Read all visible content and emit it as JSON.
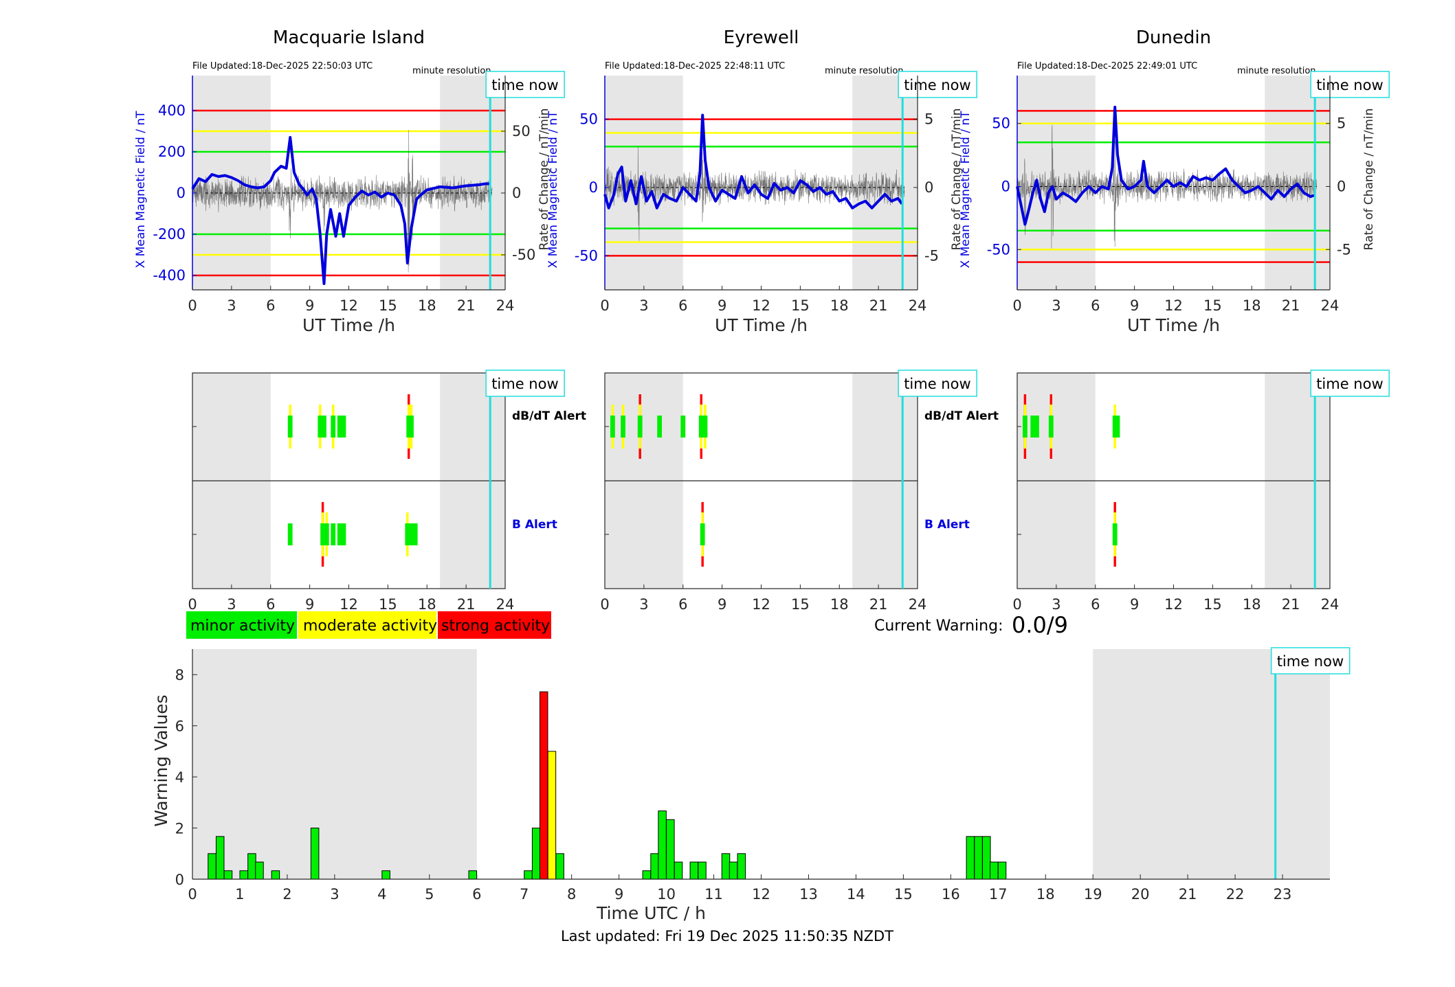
{
  "colors": {
    "minor": "#00ee00",
    "moderate": "#ffff00",
    "strong": "#ff0000",
    "field": "#0000dd",
    "timenow": "#22dddd",
    "night_shade": "#e6e6e6"
  },
  "stations": [
    {
      "name": "Macquarie Island",
      "file_updated": "File Updated:18-Dec-2025 22:50:03 UTC",
      "resolution": "minute resolution",
      "left_ylabel": "X Mean Magnetic Field / nT",
      "right_ylabel": "Rate of Change / nT/min",
      "left_ylim": [
        -470,
        570
      ],
      "left_yticks": [
        -400,
        -200,
        0,
        200,
        400
      ],
      "right_ylim": [
        -78.33,
        95
      ],
      "right_yticks": [
        -50,
        0,
        50
      ],
      "thresholds": [
        {
          "value": 400,
          "level": "strong"
        },
        {
          "value": 300,
          "level": "moderate"
        },
        {
          "value": 200,
          "level": "minor"
        },
        {
          "value": -200,
          "level": "minor"
        },
        {
          "value": -300,
          "level": "moderate"
        },
        {
          "value": -400,
          "level": "strong"
        }
      ],
      "shade": [
        [
          0,
          6
        ],
        [
          19,
          24
        ]
      ],
      "field_trace": [
        [
          0,
          20
        ],
        [
          0.5,
          70
        ],
        [
          1,
          55
        ],
        [
          1.5,
          90
        ],
        [
          2,
          80
        ],
        [
          2.5,
          85
        ],
        [
          3,
          75
        ],
        [
          3.5,
          60
        ],
        [
          4,
          40
        ],
        [
          4.5,
          30
        ],
        [
          5,
          25
        ],
        [
          5.5,
          30
        ],
        [
          6,
          60
        ],
        [
          6.3,
          100
        ],
        [
          6.8,
          130
        ],
        [
          7.2,
          120
        ],
        [
          7.5,
          270
        ],
        [
          7.8,
          100
        ],
        [
          8.2,
          40
        ],
        [
          8.5,
          20
        ],
        [
          8.8,
          -10
        ],
        [
          9.2,
          20
        ],
        [
          9.5,
          -30
        ],
        [
          9.8,
          -200
        ],
        [
          10.1,
          -440
        ],
        [
          10.3,
          -200
        ],
        [
          10.6,
          -80
        ],
        [
          11,
          -210
        ],
        [
          11.3,
          -100
        ],
        [
          11.6,
          -210
        ],
        [
          12,
          -60
        ],
        [
          12.5,
          -20
        ],
        [
          13,
          10
        ],
        [
          13.5,
          -10
        ],
        [
          14,
          5
        ],
        [
          14.5,
          -20
        ],
        [
          15,
          0
        ],
        [
          15.5,
          -10
        ],
        [
          16,
          -60
        ],
        [
          16.3,
          -150
        ],
        [
          16.5,
          -340
        ],
        [
          16.8,
          -170
        ],
        [
          17.2,
          -30
        ],
        [
          17.5,
          -10
        ],
        [
          18,
          15
        ],
        [
          19,
          30
        ],
        [
          20,
          25
        ],
        [
          21,
          35
        ],
        [
          22,
          40
        ],
        [
          22.5,
          45
        ],
        [
          22.8,
          45
        ]
      ],
      "dbdt_noise_seed": 7,
      "dbdt_bursts": [
        [
          7.5,
          60
        ],
        [
          10.1,
          40
        ],
        [
          12,
          25
        ],
        [
          16.6,
          95
        ],
        [
          16.9,
          55
        ]
      ],
      "time_now": 22.85,
      "alerts_dbdt": [
        {
          "t": 7.5,
          "level": "moderate"
        },
        {
          "t": 9.8,
          "level": "moderate"
        },
        {
          "t": 10.1,
          "level": "minor"
        },
        {
          "t": 10.8,
          "level": "moderate"
        },
        {
          "t": 11.3,
          "level": "minor"
        },
        {
          "t": 11.6,
          "level": "minor"
        },
        {
          "t": 16.6,
          "level": "strong"
        },
        {
          "t": 16.8,
          "level": "moderate"
        }
      ],
      "alerts_b": [
        {
          "t": 7.5,
          "level": "minor"
        },
        {
          "t": 10.0,
          "level": "strong"
        },
        {
          "t": 10.3,
          "level": "moderate"
        },
        {
          "t": 10.8,
          "level": "minor"
        },
        {
          "t": 11.3,
          "level": "minor"
        },
        {
          "t": 11.6,
          "level": "minor"
        },
        {
          "t": 16.5,
          "level": "moderate"
        },
        {
          "t": 16.8,
          "level": "minor"
        },
        {
          "t": 17.1,
          "level": "minor"
        }
      ]
    },
    {
      "name": "Eyrewell",
      "file_updated": "File Updated:18-Dec-2025 22:48:11 UTC",
      "resolution": "minute resolution",
      "left_ylabel": "X Mean Magnetic Field / nT",
      "right_ylabel": "Rate of Change / nT/min",
      "left_ylim": [
        -75,
        82
      ],
      "left_yticks": [
        -50,
        0,
        50
      ],
      "right_ylim": [
        -7.5,
        8.2
      ],
      "right_yticks": [
        -5,
        0,
        5
      ],
      "thresholds": [
        {
          "value": 50,
          "level": "strong"
        },
        {
          "value": 40,
          "level": "moderate"
        },
        {
          "value": 30,
          "level": "minor"
        },
        {
          "value": -30,
          "level": "minor"
        },
        {
          "value": -40,
          "level": "moderate"
        },
        {
          "value": -50,
          "level": "strong"
        }
      ],
      "shade": [
        [
          0,
          6
        ],
        [
          19,
          24
        ]
      ],
      "field_trace": [
        [
          0,
          -5
        ],
        [
          0.3,
          -15
        ],
        [
          0.7,
          -5
        ],
        [
          1,
          10
        ],
        [
          1.3,
          15
        ],
        [
          1.6,
          -10
        ],
        [
          2,
          5
        ],
        [
          2.4,
          -12
        ],
        [
          2.8,
          8
        ],
        [
          3.2,
          -10
        ],
        [
          3.6,
          -3
        ],
        [
          4,
          -15
        ],
        [
          4.5,
          -5
        ],
        [
          5,
          -8
        ],
        [
          5.5,
          -10
        ],
        [
          6,
          0
        ],
        [
          6.5,
          -5
        ],
        [
          7,
          -10
        ],
        [
          7.3,
          10
        ],
        [
          7.5,
          53
        ],
        [
          7.7,
          20
        ],
        [
          8,
          0
        ],
        [
          8.5,
          -10
        ],
        [
          9,
          -2
        ],
        [
          9.5,
          -5
        ],
        [
          10,
          -8
        ],
        [
          10.5,
          8
        ],
        [
          11,
          -4
        ],
        [
          11.5,
          2
        ],
        [
          12,
          -5
        ],
        [
          12.5,
          -8
        ],
        [
          13,
          3
        ],
        [
          13.5,
          -2
        ],
        [
          14,
          0
        ],
        [
          14.5,
          -4
        ],
        [
          15,
          5
        ],
        [
          15.5,
          2
        ],
        [
          16,
          -3
        ],
        [
          16.5,
          0
        ],
        [
          17,
          -5
        ],
        [
          17.5,
          -3
        ],
        [
          18,
          -10
        ],
        [
          18.5,
          -8
        ],
        [
          19,
          -15
        ],
        [
          19.5,
          -12
        ],
        [
          20,
          -10
        ],
        [
          20.5,
          -15
        ],
        [
          21,
          -10
        ],
        [
          21.5,
          -5
        ],
        [
          22,
          -10
        ],
        [
          22.5,
          -8
        ],
        [
          22.8,
          -12
        ]
      ],
      "dbdt_noise_seed": 13,
      "dbdt_bursts": [
        [
          0.2,
          2.5
        ],
        [
          2.6,
          6.5
        ],
        [
          7.5,
          4
        ],
        [
          7.7,
          3
        ]
      ],
      "time_now": 22.85,
      "alerts_dbdt": [
        {
          "t": 0.6,
          "level": "moderate"
        },
        {
          "t": 1.4,
          "level": "moderate"
        },
        {
          "t": 2.7,
          "level": "strong"
        },
        {
          "t": 4.2,
          "level": "minor"
        },
        {
          "t": 6.0,
          "level": "minor"
        },
        {
          "t": 7.4,
          "level": "strong"
        },
        {
          "t": 7.7,
          "level": "moderate"
        }
      ],
      "alerts_b": [
        {
          "t": 7.5,
          "level": "strong"
        }
      ]
    },
    {
      "name": "Dunedin",
      "file_updated": "File Updated:18-Dec-2025 22:49:01 UTC",
      "resolution": "minute resolution",
      "left_ylabel": "X Mean Magnetic Field / nT",
      "right_ylabel": "Rate of Change / nT/min",
      "left_ylim": [
        -82,
        88
      ],
      "left_yticks": [
        -50,
        0,
        50
      ],
      "right_ylim": [
        -8.2,
        8.8
      ],
      "right_yticks": [
        -5,
        0,
        5
      ],
      "thresholds": [
        {
          "value": 60,
          "level": "strong"
        },
        {
          "value": 50,
          "level": "moderate"
        },
        {
          "value": 35,
          "level": "minor"
        },
        {
          "value": -35,
          "level": "minor"
        },
        {
          "value": -50,
          "level": "moderate"
        },
        {
          "value": -60,
          "level": "strong"
        }
      ],
      "shade": [
        [
          0,
          6
        ],
        [
          19,
          24
        ]
      ],
      "field_trace": [
        [
          0,
          0
        ],
        [
          0.3,
          -15
        ],
        [
          0.6,
          -30
        ],
        [
          0.9,
          -18
        ],
        [
          1.2,
          -5
        ],
        [
          1.5,
          5
        ],
        [
          1.8,
          -10
        ],
        [
          2.1,
          -20
        ],
        [
          2.4,
          -5
        ],
        [
          2.7,
          0
        ],
        [
          3,
          -10
        ],
        [
          3.5,
          -5
        ],
        [
          4,
          -8
        ],
        [
          4.5,
          -12
        ],
        [
          5,
          -5
        ],
        [
          5.5,
          0
        ],
        [
          6,
          -5
        ],
        [
          6.5,
          0
        ],
        [
          7,
          -2
        ],
        [
          7.3,
          15
        ],
        [
          7.5,
          63
        ],
        [
          7.7,
          25
        ],
        [
          8,
          5
        ],
        [
          8.5,
          -2
        ],
        [
          9,
          0
        ],
        [
          9.5,
          5
        ],
        [
          9.7,
          20
        ],
        [
          10,
          0
        ],
        [
          10.5,
          -5
        ],
        [
          11,
          0
        ],
        [
          11.5,
          5
        ],
        [
          12,
          0
        ],
        [
          12.5,
          3
        ],
        [
          13,
          0
        ],
        [
          13.5,
          8
        ],
        [
          14,
          5
        ],
        [
          14.5,
          7
        ],
        [
          15,
          5
        ],
        [
          15.5,
          10
        ],
        [
          16,
          14
        ],
        [
          16.5,
          5
        ],
        [
          17,
          0
        ],
        [
          17.5,
          -5
        ],
        [
          18,
          -3
        ],
        [
          18.5,
          0
        ],
        [
          19,
          -5
        ],
        [
          19.5,
          -10
        ],
        [
          20,
          -3
        ],
        [
          20.5,
          -8
        ],
        [
          21,
          -2
        ],
        [
          21.5,
          2
        ],
        [
          22,
          -5
        ],
        [
          22.5,
          -8
        ],
        [
          22.8,
          -7
        ]
      ],
      "dbdt_noise_seed": 21,
      "dbdt_bursts": [
        [
          0.6,
          6
        ],
        [
          2.7,
          7
        ],
        [
          7.5,
          8
        ],
        [
          7.7,
          4
        ]
      ],
      "time_now": 22.85,
      "alerts_dbdt": [
        {
          "t": 0.6,
          "level": "strong"
        },
        {
          "t": 1.2,
          "level": "minor"
        },
        {
          "t": 1.5,
          "level": "minor"
        },
        {
          "t": 2.6,
          "level": "strong"
        },
        {
          "t": 7.5,
          "level": "moderate"
        },
        {
          "t": 7.7,
          "level": "minor"
        }
      ],
      "alerts_b": [
        {
          "t": 7.5,
          "level": "strong"
        }
      ]
    }
  ],
  "station_xaxis": {
    "label": "UT Time /h",
    "ticks": [
      0,
      3,
      6,
      9,
      12,
      15,
      18,
      21,
      24
    ],
    "xlim": [
      0,
      24
    ]
  },
  "alert_labels": {
    "dbdt": "dB/dT Alert",
    "b": "B Alert"
  },
  "time_now_label": "time now",
  "legend": [
    {
      "label": "minor activity",
      "level": "minor"
    },
    {
      "label": "moderate activity",
      "level": "moderate"
    },
    {
      "label": "strong activity",
      "level": "strong"
    }
  ],
  "current_warning": {
    "label": "Current Warning:",
    "value": "0.0/9"
  },
  "chart_data": {
    "type": "bar",
    "xlabel": "Time UTC / h",
    "ylabel": "Warning Values",
    "xlim": [
      0,
      24
    ],
    "ylim": [
      0,
      9
    ],
    "xticks": [
      0,
      1,
      2,
      3,
      4,
      5,
      6,
      7,
      8,
      9,
      10,
      11,
      12,
      13,
      14,
      15,
      16,
      17,
      18,
      19,
      20,
      21,
      22,
      23
    ],
    "yticks": [
      0,
      2,
      4,
      6,
      8
    ],
    "shade": [
      [
        0,
        6
      ],
      [
        19,
        24
      ]
    ],
    "time_now": 22.85,
    "bar_width_h": 0.1667,
    "bars": [
      {
        "t": 0.33,
        "v": 1.0,
        "level": "minor"
      },
      {
        "t": 0.5,
        "v": 1.67,
        "level": "minor"
      },
      {
        "t": 0.67,
        "v": 0.33,
        "level": "minor"
      },
      {
        "t": 1.0,
        "v": 0.33,
        "level": "minor"
      },
      {
        "t": 1.17,
        "v": 1.0,
        "level": "minor"
      },
      {
        "t": 1.33,
        "v": 0.67,
        "level": "minor"
      },
      {
        "t": 1.67,
        "v": 0.33,
        "level": "minor"
      },
      {
        "t": 2.5,
        "v": 2.0,
        "level": "minor"
      },
      {
        "t": 4.0,
        "v": 0.33,
        "level": "minor"
      },
      {
        "t": 5.83,
        "v": 0.33,
        "level": "minor"
      },
      {
        "t": 7.0,
        "v": 0.33,
        "level": "minor"
      },
      {
        "t": 7.17,
        "v": 2.0,
        "level": "minor"
      },
      {
        "t": 7.33,
        "v": 7.33,
        "level": "strong"
      },
      {
        "t": 7.5,
        "v": 5.0,
        "level": "moderate"
      },
      {
        "t": 7.67,
        "v": 1.0,
        "level": "minor"
      },
      {
        "t": 9.5,
        "v": 0.33,
        "level": "minor"
      },
      {
        "t": 9.67,
        "v": 1.0,
        "level": "minor"
      },
      {
        "t": 9.83,
        "v": 2.67,
        "level": "minor"
      },
      {
        "t": 10.0,
        "v": 2.33,
        "level": "minor"
      },
      {
        "t": 10.17,
        "v": 0.67,
        "level": "minor"
      },
      {
        "t": 10.5,
        "v": 0.67,
        "level": "minor"
      },
      {
        "t": 10.67,
        "v": 0.67,
        "level": "minor"
      },
      {
        "t": 11.17,
        "v": 1.0,
        "level": "minor"
      },
      {
        "t": 11.33,
        "v": 0.67,
        "level": "minor"
      },
      {
        "t": 11.5,
        "v": 1.0,
        "level": "minor"
      },
      {
        "t": 16.33,
        "v": 1.67,
        "level": "minor"
      },
      {
        "t": 16.5,
        "v": 1.67,
        "level": "minor"
      },
      {
        "t": 16.67,
        "v": 1.67,
        "level": "minor"
      },
      {
        "t": 16.83,
        "v": 0.67,
        "level": "minor"
      },
      {
        "t": 17.0,
        "v": 0.67,
        "level": "minor"
      }
    ]
  },
  "footer": "Last updated: Fri 19 Dec 2025 11:50:35 NZDT"
}
